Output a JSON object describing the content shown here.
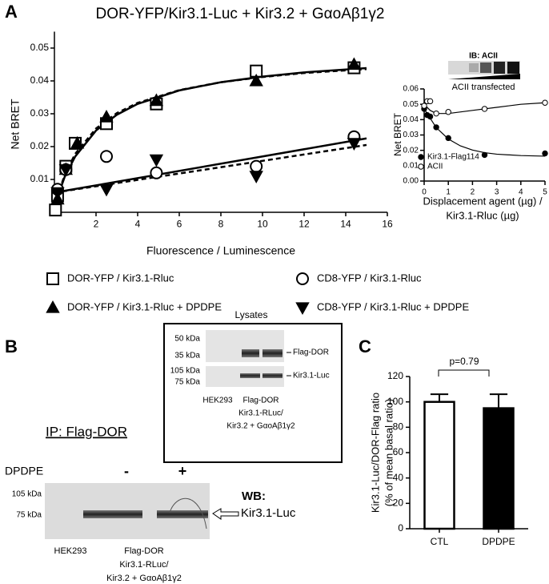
{
  "chart_data": [
    {
      "type": "scatter",
      "title": "DOR-YFP/Kir3.1-Luc + Kir3.2 + GαoAβ1γ2",
      "xlabel": "Fluorescence / Luminescence",
      "ylabel": "Net BRET",
      "xlim": [
        0,
        16
      ],
      "ylim": [
        0,
        0.055
      ],
      "xticks": [
        2,
        4,
        6,
        8,
        10,
        12,
        14,
        16
      ],
      "yticks": [
        0.01,
        0.02,
        0.03,
        0.04,
        0.05
      ],
      "legend": "below",
      "series": [
        {
          "name": "DOR-YFP / Kir3.1-Rluc",
          "marker": "square-open",
          "color": "#000000",
          "x": [
            0.05,
            0.15,
            0.55,
            1,
            2.5,
            4.9,
            9.7,
            14.4
          ],
          "values": [
            0.0007,
            0.005,
            0.014,
            0.021,
            0.027,
            0.033,
            0.043,
            0.044
          ]
        },
        {
          "name": "DOR-YFP / Kir3.1-Rluc +  DPDPE",
          "marker": "triangle-up",
          "color": "#000000",
          "x": [
            0.15,
            0.55,
            1.1,
            2.5,
            4.9,
            9.7,
            14.4
          ],
          "values": [
            0.004,
            0.013,
            0.021,
            0.029,
            0.034,
            0.04,
            0.045
          ]
        },
        {
          "name": "CD8-YFP / Kir3.1-Rluc",
          "marker": "circle-open",
          "color": "#000000",
          "x": [
            0.15,
            0.55,
            2.5,
            4.9,
            9.7,
            14.4
          ],
          "values": [
            0.007,
            0.013,
            0.017,
            0.012,
            0.014,
            0.023
          ]
        },
        {
          "name": "CD8-YFP / Kir3.1-Rluc + DPDPE",
          "marker": "triangle-down",
          "color": "#000000",
          "x": [
            0.15,
            0.55,
            2.5,
            4.9,
            9.7,
            14.4
          ],
          "values": [
            0.006,
            0.013,
            0.007,
            0.016,
            0.011,
            0.021
          ]
        }
      ],
      "fits": [
        {
          "style": "dashed",
          "color": "#000000",
          "x": [
            0,
            0.5,
            1,
            2,
            3,
            4,
            6,
            8,
            10,
            12,
            15
          ],
          "values": [
            0.002,
            0.0115,
            0.0178,
            0.0255,
            0.0302,
            0.0333,
            0.0372,
            0.0396,
            0.0412,
            0.0424,
            0.0436
          ]
        },
        {
          "style": "solid",
          "color": "#000000",
          "x": [
            0,
            0.5,
            1,
            2,
            3,
            4,
            6,
            8,
            10,
            12,
            15
          ],
          "values": [
            0.002,
            0.0109,
            0.017,
            0.0249,
            0.0297,
            0.033,
            0.0371,
            0.0396,
            0.0413,
            0.0426,
            0.0439
          ]
        },
        {
          "style": "solid",
          "color": "#000000",
          "x": [
            0,
            15
          ],
          "values": [
            0.006,
            0.0225
          ]
        },
        {
          "style": "dashed",
          "color": "#000000",
          "x": [
            0,
            15
          ],
          "values": [
            0.006,
            0.0205
          ]
        }
      ]
    },
    {
      "type": "scatter",
      "ylabel": "Net BRET",
      "xlabel": [
        "Displacement agent (µg) /",
        "Kir3.1-Rluc (µg)"
      ],
      "xlim": [
        0,
        5
      ],
      "ylim": [
        0,
        0.06
      ],
      "xticks": [
        0,
        1,
        2,
        3,
        4,
        5
      ],
      "yticks": [
        {
          "value": 0,
          "label": "0.00"
        },
        0.01,
        0.02,
        0.03,
        0.04,
        0.05,
        0.06
      ],
      "legend": "lower left",
      "annotations": {
        "blot_label": "IB: ACII",
        "wedge_label": "ACII transfected"
      },
      "series": [
        {
          "name": "Kir3.1-Flag114",
          "marker": "circle-filled",
          "color": "#000000",
          "x": [
            0,
            0.125,
            0.25,
            0.5,
            1,
            2.5,
            5
          ],
          "values": [
            0.047,
            0.043,
            0.042,
            0.035,
            0.028,
            0.017,
            0.018
          ]
        },
        {
          "name": "ACII",
          "marker": "circle-open",
          "color": "#000000",
          "x": [
            0,
            0.125,
            0.25,
            0.5,
            1,
            2.5,
            5
          ],
          "values": [
            0.049,
            0.052,
            0.052,
            0.044,
            0.045,
            0.047,
            0.051
          ]
        }
      ],
      "fits": [
        {
          "style": "solid",
          "color": "#000000",
          "x": [
            0,
            0.5,
            1,
            1.5,
            2,
            2.5,
            3,
            4,
            5
          ],
          "values": [
            0.047,
            0.0348,
            0.0274,
            0.0229,
            0.0202,
            0.0185,
            0.0175,
            0.0166,
            0.0162
          ]
        },
        {
          "style": "solid",
          "color": "#000000",
          "x": [
            0,
            0.25,
            0.5,
            1,
            2,
            3,
            4,
            5
          ],
          "values": [
            0.05,
            0.046,
            0.044,
            0.044,
            0.046,
            0.048,
            0.05,
            0.051
          ]
        }
      ]
    },
    {
      "type": "bar",
      "ylabel": [
        "Kir3.1-Luc/DOR-Flag ratio",
        "(% of mean basal ratio)"
      ],
      "categories": [
        "CTL",
        "DPDPE"
      ],
      "values": [
        100,
        95
      ],
      "errors": [
        6,
        11
      ],
      "colors": [
        "#ffffff",
        "#000000"
      ],
      "ylim": [
        0,
        120
      ],
      "yticks": [
        0,
        20,
        40,
        60,
        80,
        100,
        120
      ],
      "annotation": "p=0.79"
    }
  ],
  "panel_labels": [
    "A",
    "B",
    "C"
  ],
  "lysates": {
    "title": "Lysates",
    "markers": [
      "50 kDa",
      "35 kDa",
      "105 kDa",
      "75 kDa"
    ],
    "bands": [
      "Flag-DOR",
      "Kir3.1-Luc"
    ],
    "lanes": [
      "HEK293",
      [
        "Flag-DOR",
        "Kir3.1-RLuc/",
        "Kir3.2 + GαoAβ1γ2"
      ]
    ]
  },
  "ip_blot": {
    "title": "IP: Flag-DOR",
    "treatment": "DPDPE",
    "conditions": [
      "-",
      "+"
    ],
    "markers": [
      "105 kDa",
      "75 kDa"
    ],
    "wb_label": "WB:",
    "band": "Kir3.1-Luc",
    "lanes": [
      "HEK293",
      [
        "Flag-DOR",
        "Kir3.1-RLuc/",
        "Kir3.2 + GαoAβ1γ2"
      ]
    ]
  }
}
